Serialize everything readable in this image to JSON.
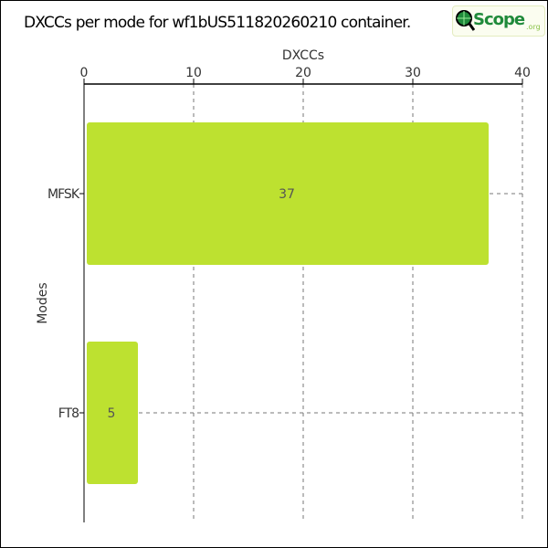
{
  "title": "DXCCs per mode for wf1bUS511820260210 container.",
  "logo": {
    "text": "Scope",
    "suffix": ".org"
  },
  "chart_data": {
    "type": "bar",
    "orientation": "horizontal",
    "categories": [
      "MFSK",
      "FT8"
    ],
    "values": [
      37,
      5
    ],
    "xlabel": "DXCCs",
    "ylabel": "Modes",
    "xlim": [
      0,
      40
    ],
    "xticks": [
      "0",
      "10",
      "20",
      "30",
      "40"
    ],
    "x_axis_position": "top",
    "grid": true,
    "bar_color": "#bde130",
    "show_data_labels": true
  }
}
